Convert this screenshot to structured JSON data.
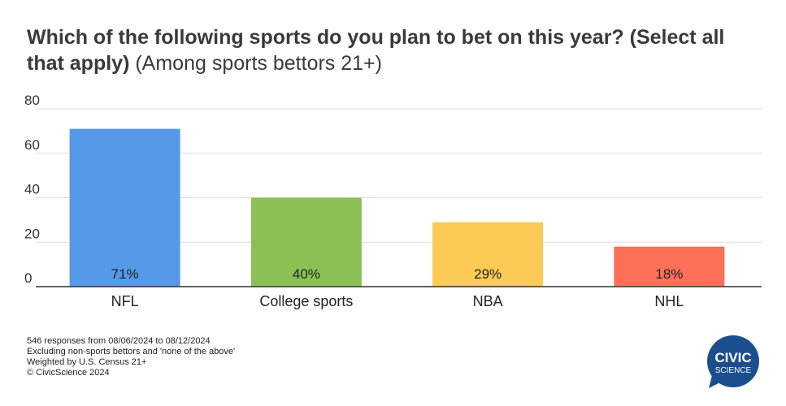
{
  "title": {
    "bold": "Which of the following sports do you plan to bet on this year? (Select all that apply)",
    "light": "(Among sports bettors 21+)"
  },
  "chart_data": {
    "type": "bar",
    "categories": [
      "NFL",
      "College sports",
      "NBA",
      "NHL"
    ],
    "values": [
      71,
      40,
      29,
      18
    ],
    "value_labels": [
      "71%",
      "40%",
      "29%",
      "18%"
    ],
    "colors": [
      "#5599e8",
      "#8bc154",
      "#fccb55",
      "#ff7058"
    ],
    "yticks": [
      0,
      20,
      40,
      60,
      80
    ],
    "ylim": [
      0,
      80
    ],
    "grid": true
  },
  "footnotes": [
    "546 responses from 08/06/2024 to 08/12/2024",
    "Excluding non-sports bettors and 'none of the above'",
    "Weighted by U.S. Census 21+",
    "© CivicScience 2024"
  ],
  "logo": {
    "line1": "CIVIC",
    "line2": "SCIENCE",
    "color": "#1b4e8c"
  }
}
